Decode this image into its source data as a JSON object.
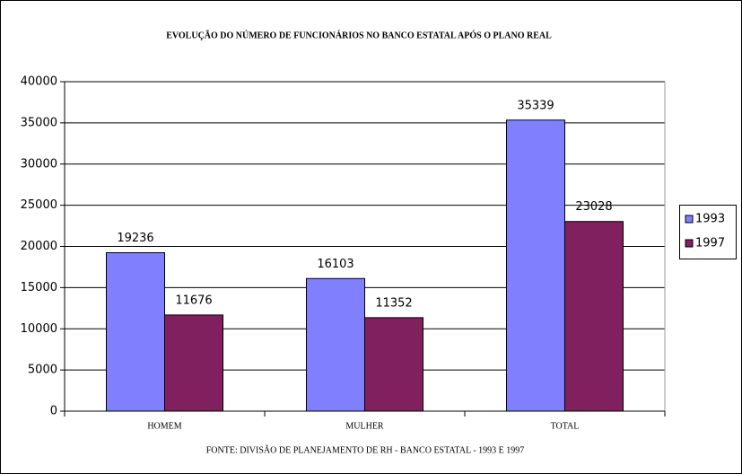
{
  "chart_data": {
    "type": "bar",
    "title": "EVOLUÇÃO DO NÚMERO DE FUNCIONÁRIOS NO BANCO ESTATAL APÓS O PLANO REAL",
    "footnote": "FONTE: DIVISÃO DE PLANEJAMENTO DE RH - BANCO ESTATAL - 1993 E 1997",
    "categories": [
      "HOMEM",
      "MULHER",
      "TOTAL"
    ],
    "series": [
      {
        "name": "1993",
        "color": "#8080ff",
        "values": [
          19236,
          16103,
          35339
        ]
      },
      {
        "name": "1997",
        "color": "#80205f",
        "values": [
          11676,
          11352,
          23028
        ]
      }
    ],
    "ylim": [
      0,
      40000
    ],
    "yticks": [
      0,
      5000,
      10000,
      15000,
      20000,
      25000,
      30000,
      35000,
      40000
    ],
    "grid": true,
    "legend": "right"
  }
}
